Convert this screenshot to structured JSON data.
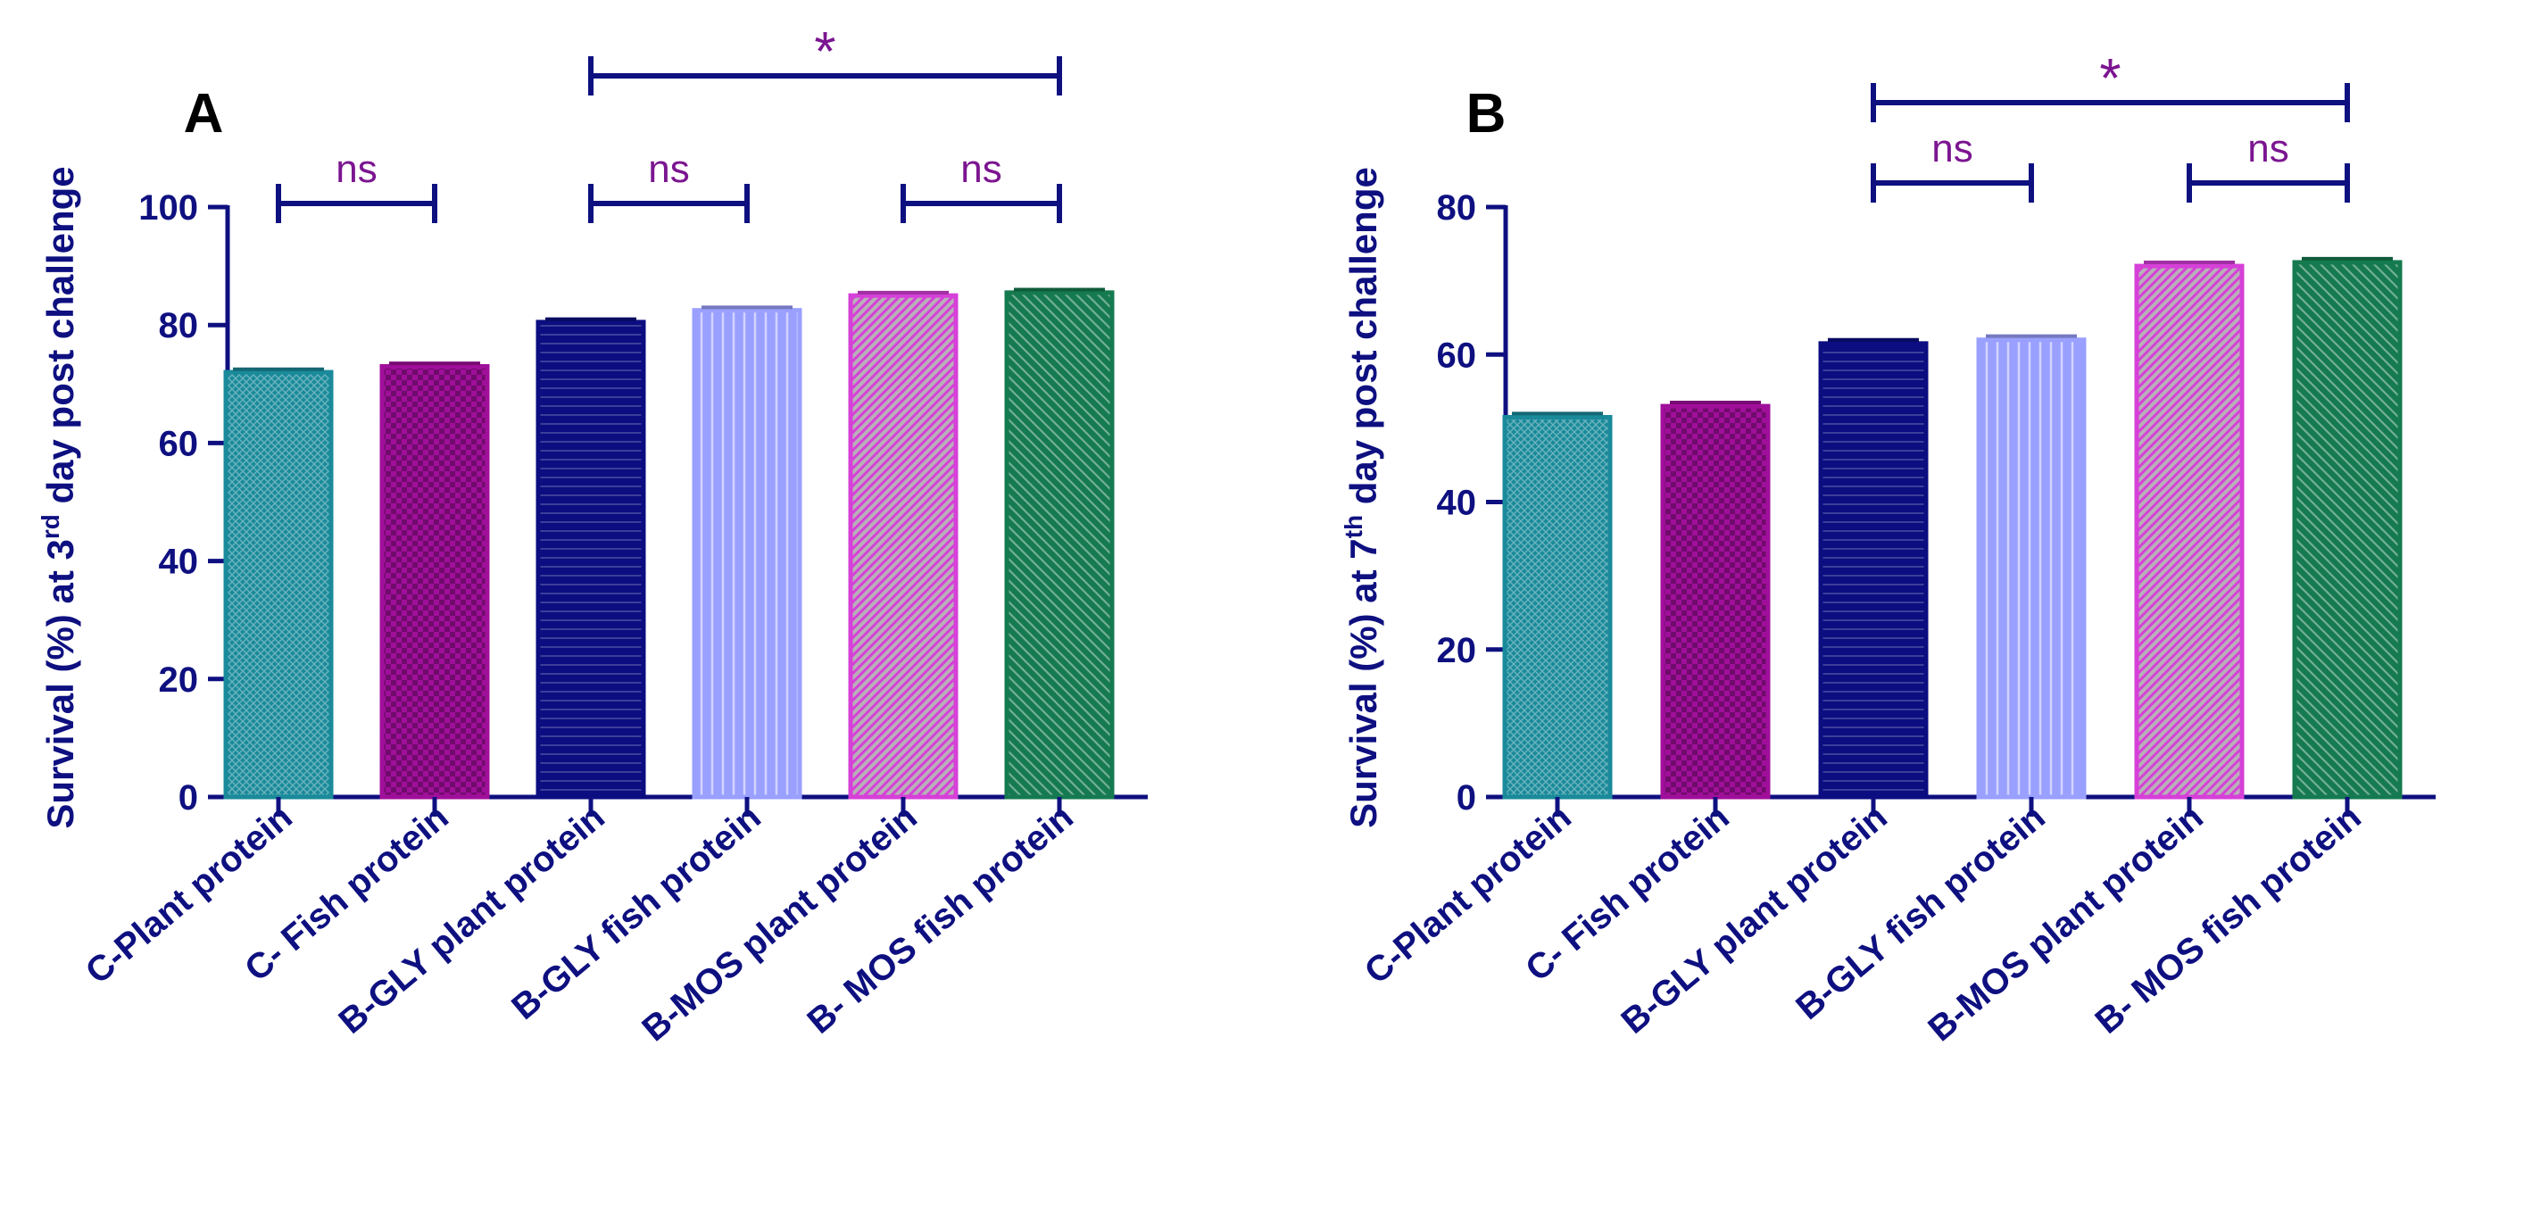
{
  "colors": {
    "axis": "#0e1080",
    "annotation": "#7b1590",
    "bar_colors": [
      "#1a8a9a",
      "#a00f9a",
      "#0b0d80",
      "#9aa0ff",
      "#d640d8",
      "#157a4f"
    ]
  },
  "chart_data": [
    {
      "type": "bar",
      "panel_label": "A",
      "ylabel_parts": {
        "pre": "Survival (%) at 3",
        "sup": "rd",
        "post": " day post challenge"
      },
      "categories": [
        "C-Plant protein",
        "C- Fish protein",
        "B-GLY plant protein",
        "B-GLY fish protein",
        "B-MOS plant protein",
        "B- MOS fish protein"
      ],
      "values": [
        72,
        73,
        80.5,
        82.5,
        85,
        85.5
      ],
      "errors": [
        0.5,
        0.5,
        0.5,
        0.5,
        0.5,
        0.5
      ],
      "patterns": [
        "crosshatch",
        "checker",
        "hlines",
        "vlines",
        "diag-light",
        "diag-dark"
      ],
      "ylim": [
        0,
        100
      ],
      "yticks": [
        0,
        20,
        40,
        60,
        80,
        100
      ],
      "significance": [
        {
          "from": 0,
          "to": 1,
          "label": "ns",
          "level": 1
        },
        {
          "from": 2,
          "to": 3,
          "label": "ns",
          "level": 1
        },
        {
          "from": 4,
          "to": 5,
          "label": "ns",
          "level": 1
        },
        {
          "from": 2,
          "to": 5,
          "label": "*",
          "level": 2
        }
      ]
    },
    {
      "type": "bar",
      "panel_label": "B",
      "ylabel_parts": {
        "pre": "Survival (%) at 7",
        "sup": "th",
        "post": " day post challenge"
      },
      "categories": [
        "C-Plant protein",
        "C- Fish protein",
        "B-GLY plant protein",
        "B-GLY fish protein",
        "B-MOS plant protein",
        "B- MOS fish protein"
      ],
      "values": [
        51.5,
        53,
        61.5,
        62,
        72,
        72.5
      ],
      "errors": [
        0.5,
        0.5,
        0.5,
        0.5,
        0.5,
        0.5
      ],
      "patterns": [
        "crosshatch",
        "checker",
        "hlines",
        "vlines",
        "diag-light",
        "diag-dark"
      ],
      "ylim": [
        0,
        80
      ],
      "yticks": [
        0,
        20,
        40,
        60,
        80
      ],
      "significance": [
        {
          "from": 2,
          "to": 3,
          "label": "ns",
          "level": 1
        },
        {
          "from": 4,
          "to": 5,
          "label": "ns",
          "level": 1
        },
        {
          "from": 2,
          "to": 5,
          "label": "*",
          "level": 2
        }
      ]
    }
  ]
}
